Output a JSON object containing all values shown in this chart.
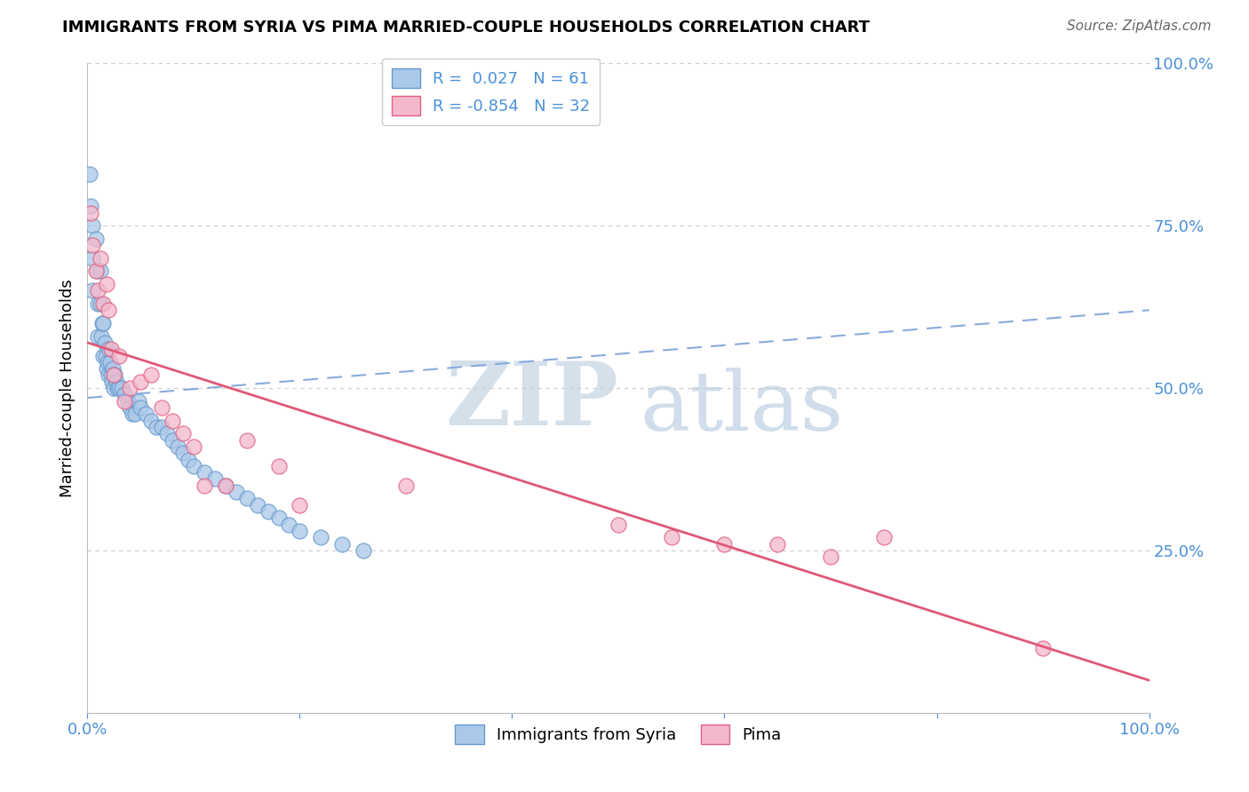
{
  "title": "IMMIGRANTS FROM SYRIA VS PIMA MARRIED-COUPLE HOUSEHOLDS CORRELATION CHART",
  "source": "Source: ZipAtlas.com",
  "ylabel": "Married-couple Households",
  "blue_R": "0.027",
  "blue_N": "61",
  "pink_R": "-0.854",
  "pink_N": "32",
  "blue_scatter_x": [
    0.2,
    0.3,
    0.5,
    0.5,
    0.5,
    0.8,
    0.9,
    1.0,
    1.0,
    1.2,
    1.2,
    1.3,
    1.4,
    1.5,
    1.5,
    1.6,
    1.7,
    1.8,
    1.9,
    2.0,
    2.0,
    2.1,
    2.2,
    2.3,
    2.4,
    2.5,
    2.6,
    2.7,
    2.8,
    3.0,
    3.2,
    3.5,
    3.8,
    4.0,
    4.2,
    4.5,
    4.8,
    5.0,
    5.5,
    6.0,
    6.5,
    7.0,
    7.5,
    8.0,
    8.5,
    9.0,
    9.5,
    10.0,
    11.0,
    12.0,
    13.0,
    14.0,
    15.0,
    16.0,
    17.0,
    18.0,
    19.0,
    20.0,
    22.0,
    24.0,
    26.0
  ],
  "blue_scatter_y": [
    83.0,
    78.0,
    75.0,
    70.0,
    65.0,
    73.0,
    68.0,
    63.0,
    58.0,
    68.0,
    63.0,
    58.0,
    60.0,
    55.0,
    60.0,
    57.0,
    55.0,
    53.0,
    54.0,
    56.0,
    52.0,
    54.0,
    52.0,
    51.0,
    53.0,
    50.0,
    52.0,
    51.0,
    50.0,
    50.0,
    50.0,
    49.0,
    48.0,
    47.0,
    46.0,
    46.0,
    48.0,
    47.0,
    46.0,
    45.0,
    44.0,
    44.0,
    43.0,
    42.0,
    41.0,
    40.0,
    39.0,
    38.0,
    37.0,
    36.0,
    35.0,
    34.0,
    33.0,
    32.0,
    31.0,
    30.0,
    29.0,
    28.0,
    27.0,
    26.0,
    25.0
  ],
  "pink_scatter_x": [
    0.3,
    0.5,
    0.8,
    1.0,
    1.2,
    1.5,
    1.8,
    2.0,
    2.2,
    2.5,
    3.0,
    3.5,
    4.0,
    5.0,
    6.0,
    7.0,
    8.0,
    9.0,
    10.0,
    11.0,
    13.0,
    15.0,
    18.0,
    20.0,
    30.0,
    50.0,
    55.0,
    60.0,
    65.0,
    70.0,
    75.0,
    90.0
  ],
  "pink_scatter_y": [
    77.0,
    72.0,
    68.0,
    65.0,
    70.0,
    63.0,
    66.0,
    62.0,
    56.0,
    52.0,
    55.0,
    48.0,
    50.0,
    51.0,
    52.0,
    47.0,
    45.0,
    43.0,
    41.0,
    35.0,
    35.0,
    42.0,
    38.0,
    32.0,
    35.0,
    29.0,
    27.0,
    26.0,
    26.0,
    24.0,
    27.0,
    10.0
  ],
  "blue_line_x": [
    0.0,
    100.0
  ],
  "blue_line_y": [
    48.5,
    62.0
  ],
  "pink_line_x": [
    0.0,
    100.0
  ],
  "pink_line_y": [
    57.0,
    5.0
  ],
  "blue_color": "#aac8e8",
  "blue_edge_color": "#6699cc",
  "pink_color": "#f4b8cc",
  "pink_edge_color": "#e06080",
  "blue_line_color": "#88aadd",
  "pink_line_color": "#e05878",
  "watermark_zip_color": "#d0dde8",
  "watermark_atlas_color": "#c8d8e8",
  "xlim": [
    0.0,
    100.0
  ],
  "ylim": [
    0.0,
    100.0
  ],
  "ytick_positions": [
    0.0,
    25.0,
    50.0,
    75.0,
    100.0
  ],
  "ytick_labels": [
    "",
    "25.0%",
    "50.0%",
    "75.0%",
    "100.0%"
  ],
  "background_color": "#ffffff",
  "grid_color": "#cccccc",
  "tick_color": "#4a90d9",
  "title_fontsize": 13,
  "axis_fontsize": 13,
  "legend_fontsize": 13
}
